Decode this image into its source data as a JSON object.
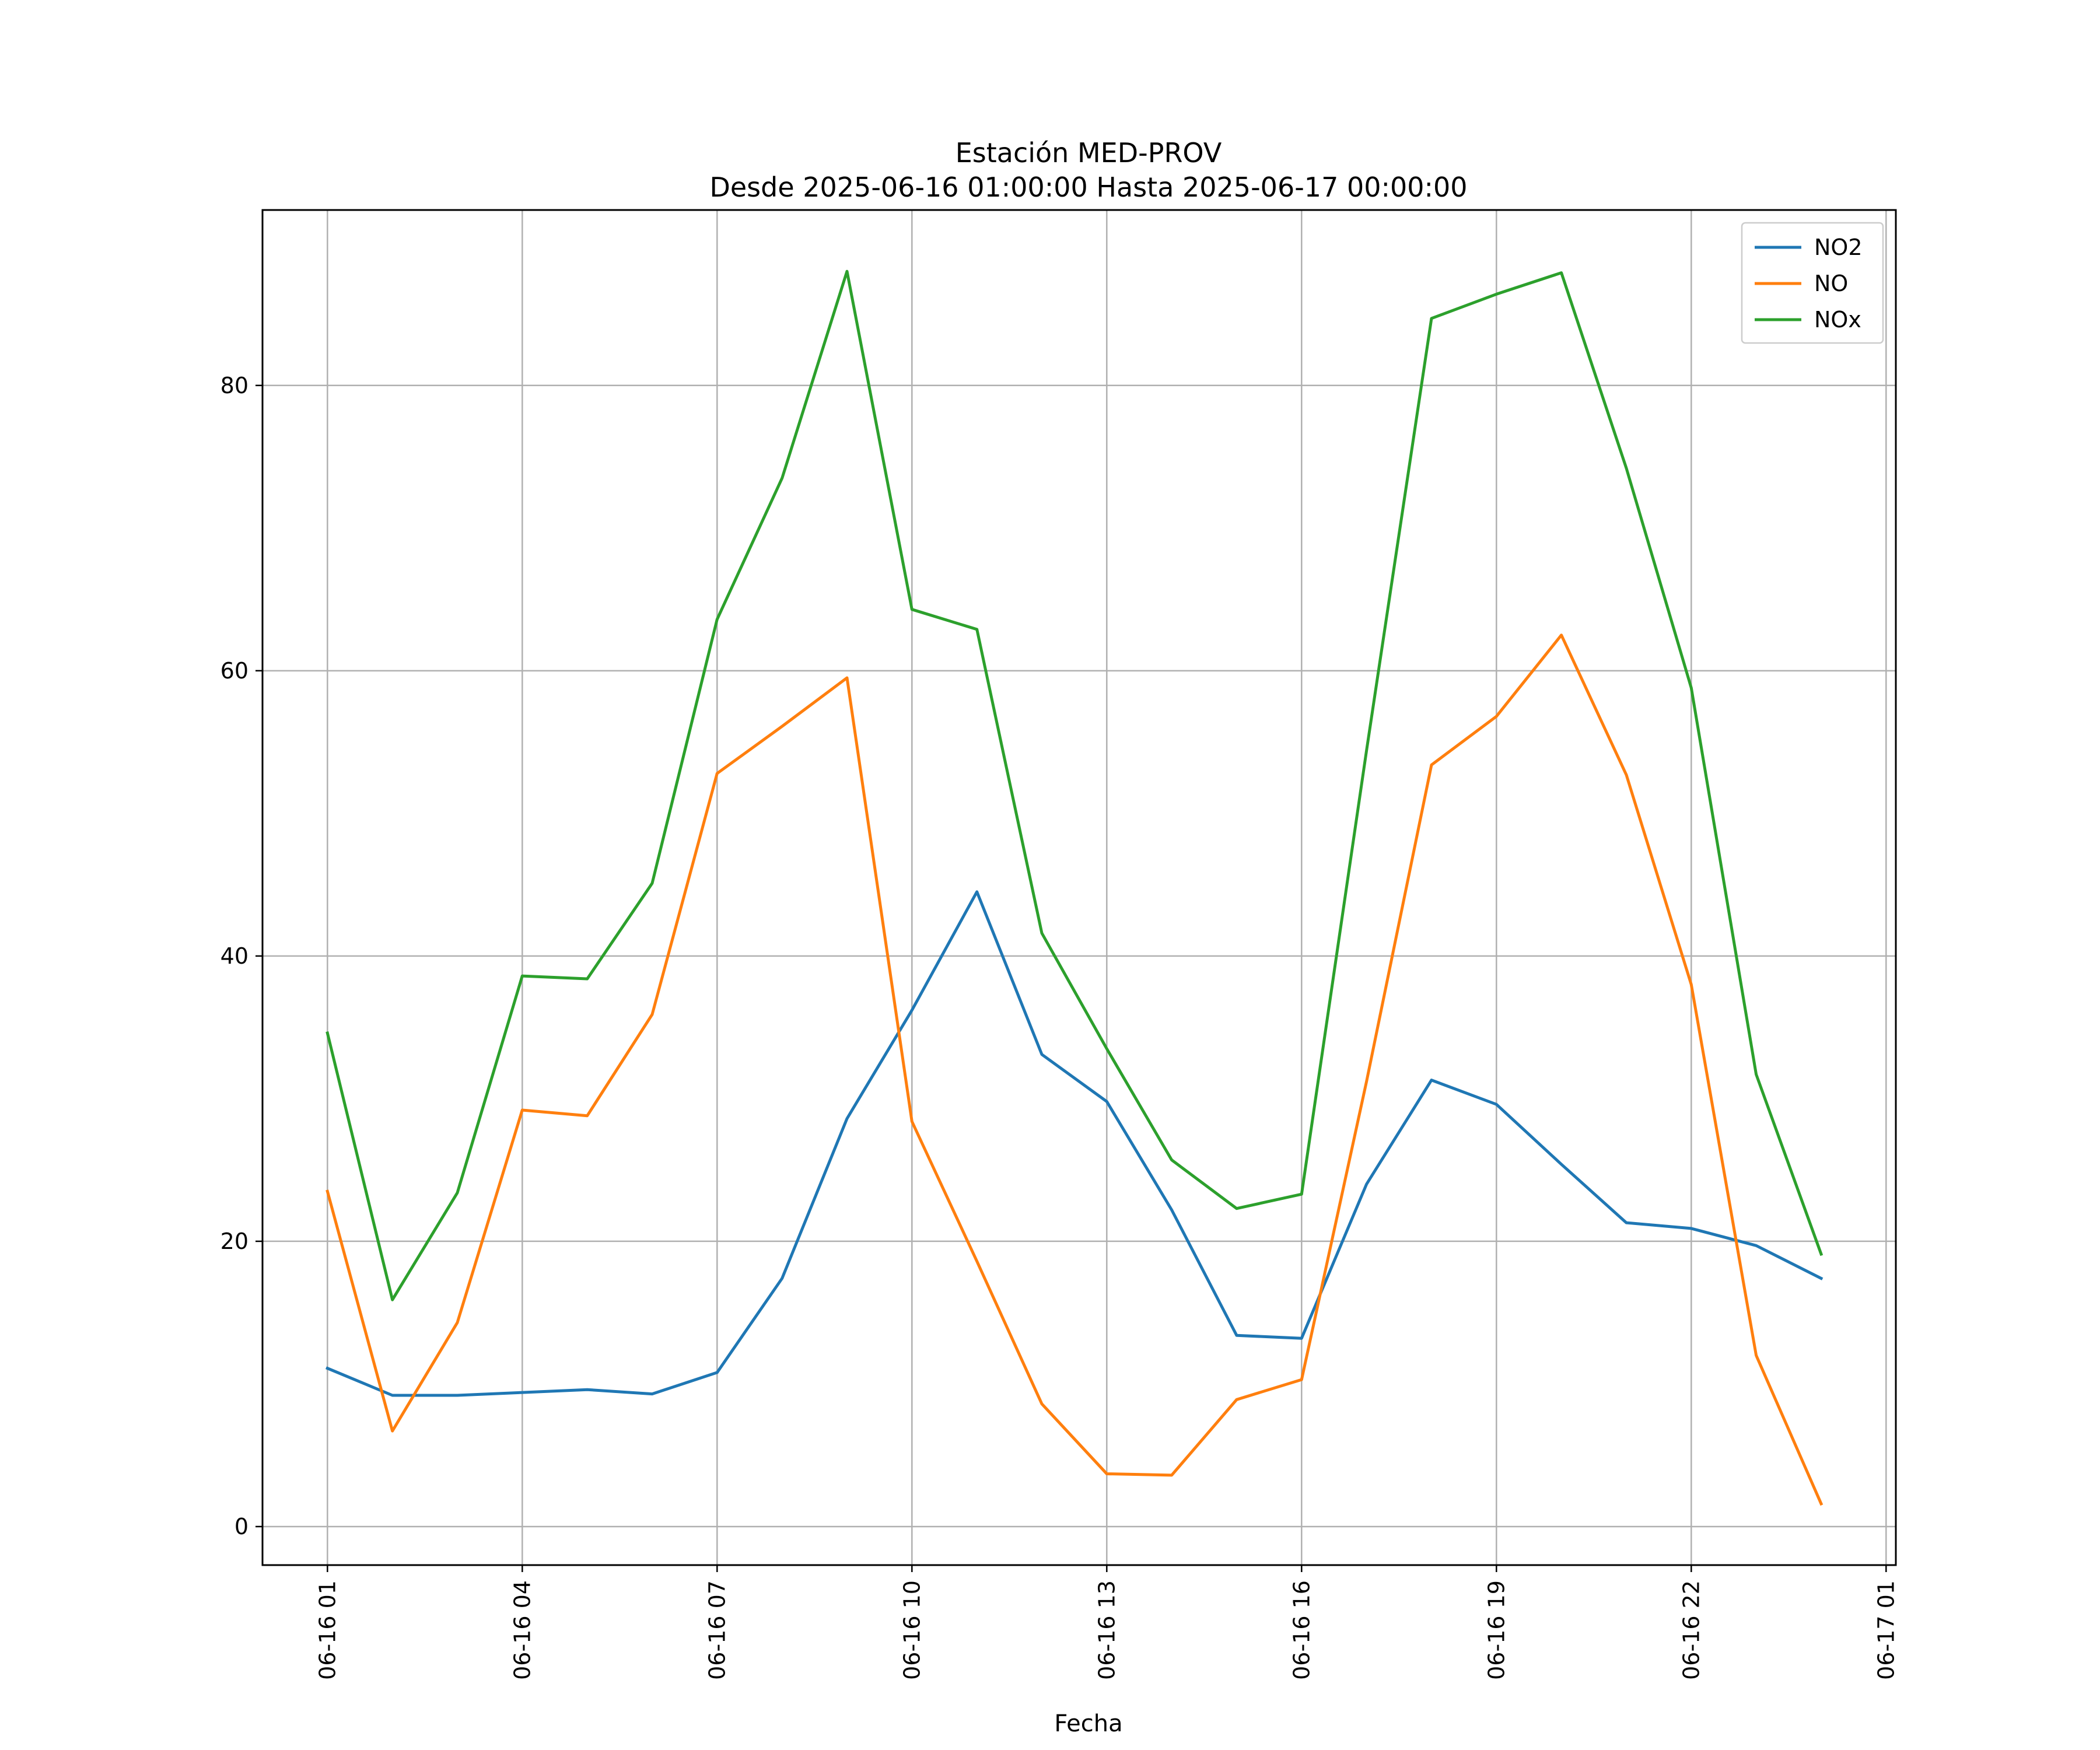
{
  "chart_data": {
    "type": "line",
    "title": "Estación MED-PROV",
    "subtitle": "Desde 2025-06-16 01:00:00 Hasta 2025-06-17 00:00:00",
    "xlabel": "Fecha",
    "ylabel": "",
    "x": [
      "2025-06-16 01:00",
      "2025-06-16 02:00",
      "2025-06-16 03:00",
      "2025-06-16 04:00",
      "2025-06-16 05:00",
      "2025-06-16 06:00",
      "2025-06-16 07:00",
      "2025-06-16 08:00",
      "2025-06-16 09:00",
      "2025-06-16 10:00",
      "2025-06-16 11:00",
      "2025-06-16 12:00",
      "2025-06-16 13:00",
      "2025-06-16 14:00",
      "2025-06-16 15:00",
      "2025-06-16 16:00",
      "2025-06-16 17:00",
      "2025-06-16 18:00",
      "2025-06-16 19:00",
      "2025-06-16 20:00",
      "2025-06-16 21:00",
      "2025-06-16 22:00",
      "2025-06-16 23:00",
      "2025-06-17 00:00"
    ],
    "xlim": [
      "2025-06-16 00:00",
      "2025-06-17 01:09"
    ],
    "ylim": [
      -2.7,
      92.3
    ],
    "x_ticks": [
      {
        "value": "2025-06-16 01:00",
        "label": "06-16 01"
      },
      {
        "value": "2025-06-16 04:00",
        "label": "06-16 04"
      },
      {
        "value": "2025-06-16 07:00",
        "label": "06-16 07"
      },
      {
        "value": "2025-06-16 10:00",
        "label": "06-16 10"
      },
      {
        "value": "2025-06-16 13:00",
        "label": "06-16 13"
      },
      {
        "value": "2025-06-16 16:00",
        "label": "06-16 16"
      },
      {
        "value": "2025-06-16 19:00",
        "label": "06-16 19"
      },
      {
        "value": "2025-06-16 22:00",
        "label": "06-16 22"
      },
      {
        "value": "2025-06-17 01:00",
        "label": "06-17 01"
      }
    ],
    "y_ticks": [
      0,
      20,
      40,
      60,
      80
    ],
    "grid": true,
    "legend_position": "top-right",
    "series": [
      {
        "name": "NO2",
        "color": "#1f77b4",
        "values": [
          11.1,
          9.2,
          9.2,
          9.4,
          9.6,
          9.3,
          10.8,
          17.4,
          28.6,
          36.2,
          44.5,
          33.1,
          29.8,
          22.2,
          13.4,
          13.2,
          24.0,
          31.3,
          29.6,
          25.4,
          21.3,
          20.9,
          19.7,
          17.4
        ]
      },
      {
        "name": "NO",
        "color": "#ff7f0e",
        "values": [
          23.5,
          6.7,
          14.3,
          29.2,
          28.8,
          35.9,
          52.8,
          56.1,
          59.5,
          28.4,
          18.6,
          8.6,
          3.7,
          3.6,
          8.9,
          10.3,
          31.2,
          53.4,
          56.8,
          62.5,
          52.7,
          38.0,
          12.0,
          1.6
        ]
      },
      {
        "name": "NOx",
        "color": "#2ca02c",
        "values": [
          34.6,
          15.9,
          23.4,
          38.6,
          38.4,
          45.1,
          63.6,
          73.5,
          88.0,
          64.3,
          62.9,
          41.6,
          33.5,
          25.7,
          22.3,
          23.3,
          54.4,
          84.7,
          86.4,
          87.9,
          74.2,
          58.8,
          31.7,
          19.1
        ]
      }
    ]
  }
}
